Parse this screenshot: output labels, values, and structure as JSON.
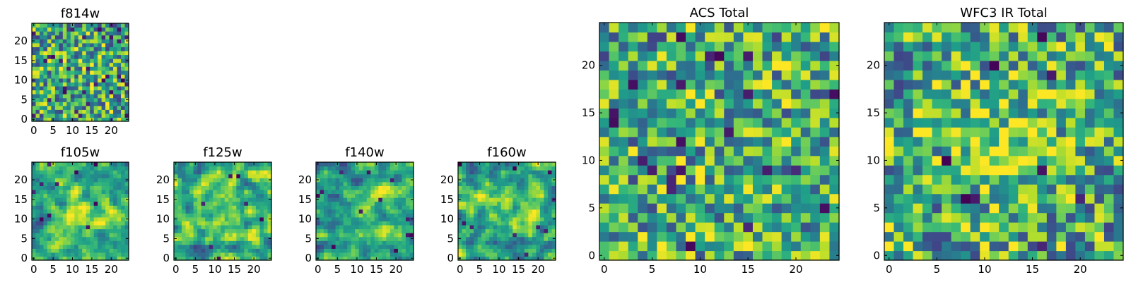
{
  "chart_data": [
    {
      "id": "f814w",
      "type": "heatmap",
      "title": "f814w",
      "grid_size": 25,
      "xlim": [
        0,
        24
      ],
      "ylim": [
        0,
        24
      ],
      "x_ticks": [
        0,
        5,
        10,
        15,
        20
      ],
      "y_ticks": [
        0,
        5,
        10,
        15,
        20
      ],
      "x_tick_labels": [
        "0",
        "5",
        "10",
        "15",
        "20"
      ],
      "y_tick_labels": [
        "0",
        "5",
        "10",
        "15",
        "20"
      ],
      "colormap": "viridis",
      "value_range": [
        0,
        1
      ],
      "seed": 814,
      "blob_strength": 0.05,
      "smoothing": 0,
      "dark_pixel_fraction": 0.05
    },
    {
      "id": "f105w",
      "type": "heatmap",
      "title": "f105w",
      "grid_size": 25,
      "xlim": [
        0,
        24
      ],
      "ylim": [
        0,
        24
      ],
      "x_ticks": [
        0,
        5,
        10,
        15,
        20
      ],
      "y_ticks": [
        0,
        5,
        10,
        15,
        20
      ],
      "x_tick_labels": [
        "0",
        "5",
        "10",
        "15",
        "20"
      ],
      "y_tick_labels": [
        "0",
        "5",
        "10",
        "15",
        "20"
      ],
      "colormap": "viridis",
      "value_range": [
        0,
        1
      ],
      "seed": 105,
      "blob_strength": 0.3,
      "smoothing": 1,
      "dark_pixel_fraction": 0.02
    },
    {
      "id": "f125w",
      "type": "heatmap",
      "title": "f125w",
      "grid_size": 25,
      "xlim": [
        0,
        24
      ],
      "ylim": [
        0,
        24
      ],
      "x_ticks": [
        0,
        5,
        10,
        15,
        20
      ],
      "y_ticks": [
        0,
        5,
        10,
        15,
        20
      ],
      "x_tick_labels": [
        "0",
        "5",
        "10",
        "15",
        "20"
      ],
      "y_tick_labels": [
        "0",
        "5",
        "10",
        "15",
        "20"
      ],
      "colormap": "viridis",
      "value_range": [
        0,
        1
      ],
      "seed": 125,
      "blob_strength": 0.25,
      "smoothing": 1,
      "dark_pixel_fraction": 0.02
    },
    {
      "id": "f140w",
      "type": "heatmap",
      "title": "f140w",
      "grid_size": 25,
      "xlim": [
        0,
        24
      ],
      "ylim": [
        0,
        24
      ],
      "x_ticks": [
        0,
        5,
        10,
        15,
        20
      ],
      "y_ticks": [
        0,
        5,
        10,
        15,
        20
      ],
      "x_tick_labels": [
        "0",
        "5",
        "10",
        "15",
        "20"
      ],
      "y_tick_labels": [
        "0",
        "5",
        "10",
        "15",
        "20"
      ],
      "colormap": "viridis",
      "value_range": [
        0,
        1
      ],
      "seed": 140,
      "blob_strength": 0.15,
      "smoothing": 1,
      "dark_pixel_fraction": 0.03
    },
    {
      "id": "f160w",
      "type": "heatmap",
      "title": "f160w",
      "grid_size": 25,
      "xlim": [
        0,
        24
      ],
      "ylim": [
        0,
        24
      ],
      "x_ticks": [
        0,
        5,
        10,
        15,
        20
      ],
      "y_ticks": [
        0,
        5,
        10,
        15,
        20
      ],
      "x_tick_labels": [
        "0",
        "5",
        "10",
        "15",
        "20"
      ],
      "y_tick_labels": [
        "0",
        "5",
        "10",
        "15",
        "20"
      ],
      "colormap": "viridis",
      "value_range": [
        0,
        1
      ],
      "seed": 160,
      "blob_strength": 0.3,
      "smoothing": 1,
      "dark_pixel_fraction": 0.02
    },
    {
      "id": "acs_total",
      "type": "heatmap",
      "title": "ACS Total",
      "grid_size": 25,
      "xlim": [
        0,
        24
      ],
      "ylim": [
        0,
        24
      ],
      "x_ticks": [
        0,
        5,
        10,
        15,
        20
      ],
      "y_ticks": [
        0,
        5,
        10,
        15,
        20
      ],
      "x_tick_labels": [
        "0",
        "5",
        "10",
        "15",
        "20"
      ],
      "y_tick_labels": [
        "0",
        "5",
        "10",
        "15",
        "20"
      ],
      "colormap": "viridis",
      "value_range": [
        0,
        1
      ],
      "seed": 999,
      "blob_strength": 0.05,
      "smoothing": 0,
      "dark_pixel_fraction": 0.03
    },
    {
      "id": "wfc3_ir_total",
      "type": "heatmap",
      "title": "WFC3 IR Total",
      "grid_size": 25,
      "xlim": [
        0,
        24
      ],
      "ylim": [
        0,
        24
      ],
      "x_ticks": [
        0,
        5,
        10,
        15,
        20
      ],
      "y_ticks": [
        0,
        5,
        10,
        15,
        20
      ],
      "x_tick_labels": [
        "0",
        "5",
        "10",
        "15",
        "20"
      ],
      "y_tick_labels": [
        "0",
        "5",
        "10",
        "15",
        "20"
      ],
      "colormap": "viridis",
      "value_range": [
        0,
        1
      ],
      "seed": 3141,
      "blob_strength": 0.25,
      "smoothing": 0,
      "dark_pixel_fraction": 0.02
    }
  ]
}
